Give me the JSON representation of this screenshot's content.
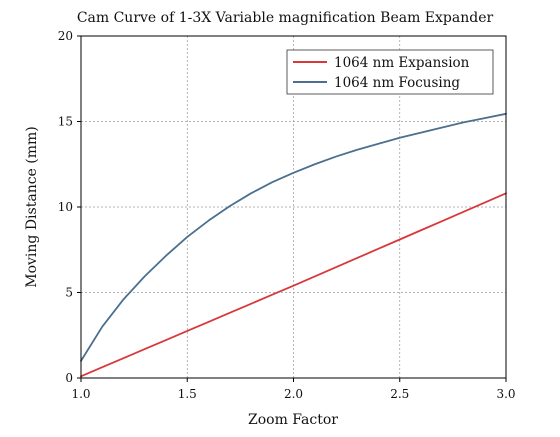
{
  "chart_data": {
    "type": "line",
    "title": "Cam Curve of 1-3X Variable magnification Beam Expander",
    "xlabel": "Zoom Factor",
    "ylabel": "Moving Distance (mm)",
    "xlim": [
      1.0,
      3.0
    ],
    "ylim": [
      0,
      20
    ],
    "xticks": [
      "1.0",
      "1.5",
      "2.0",
      "2.5",
      "3.0"
    ],
    "yticks": [
      "0",
      "5",
      "10",
      "15",
      "20"
    ],
    "grid": true,
    "legend_position": "top-right",
    "series": [
      {
        "name": "1064 nm Expansion",
        "color": "#d9383a",
        "x": [
          1.0,
          1.1,
          1.2,
          1.3,
          1.4,
          1.5,
          1.6,
          1.7,
          1.8,
          1.9,
          2.0,
          2.1,
          2.2,
          2.3,
          2.4,
          2.5,
          2.6,
          2.7,
          2.8,
          2.9,
          3.0
        ],
        "values": [
          0.1,
          0.63,
          1.16,
          1.69,
          2.22,
          2.75,
          3.28,
          3.81,
          4.34,
          4.87,
          5.4,
          5.94,
          6.48,
          7.02,
          7.56,
          8.1,
          8.64,
          9.18,
          9.72,
          10.26,
          10.8
        ]
      },
      {
        "name": "1064 nm Focusing",
        "color": "#4a6f8f",
        "x": [
          1.0,
          1.1,
          1.2,
          1.3,
          1.4,
          1.5,
          1.6,
          1.7,
          1.8,
          1.9,
          2.0,
          2.1,
          2.2,
          2.3,
          2.4,
          2.5,
          2.6,
          2.7,
          2.8,
          2.9,
          3.0
        ],
        "values": [
          1.0,
          3.0,
          4.6,
          5.95,
          7.15,
          8.25,
          9.2,
          10.05,
          10.8,
          11.45,
          12.0,
          12.5,
          12.95,
          13.35,
          13.7,
          14.05,
          14.35,
          14.65,
          14.95,
          15.2,
          15.45
        ]
      }
    ]
  }
}
